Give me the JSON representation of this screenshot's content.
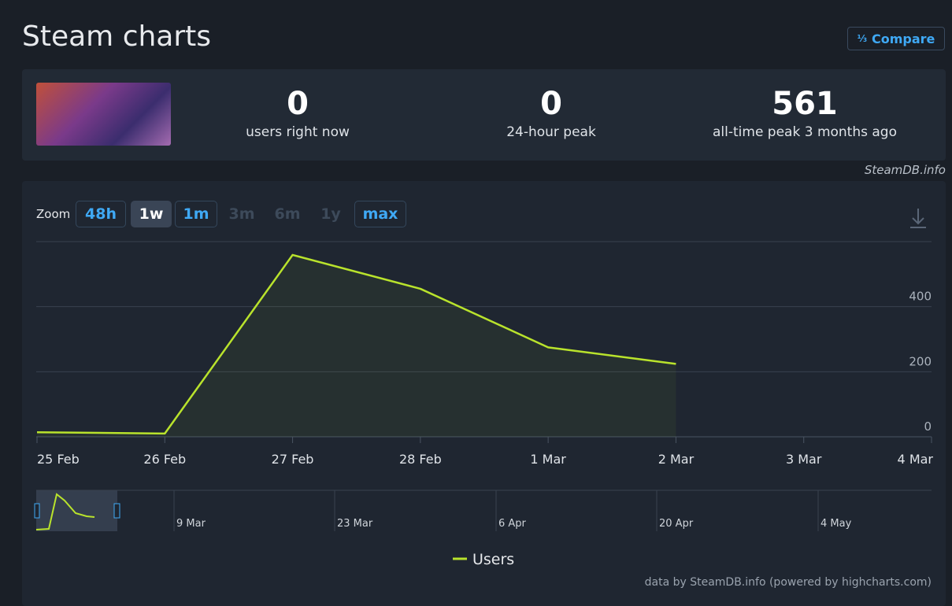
{
  "header": {
    "title": "Steam charts",
    "compare": "Compare"
  },
  "stats": [
    {
      "value": 0,
      "label": "users right now"
    },
    {
      "value": 0,
      "label": "24-hour peak"
    },
    {
      "value": 561,
      "label": "all-time peak 3 months ago"
    }
  ],
  "source": "SteamDB.info",
  "zoom": {
    "label": "Zoom",
    "buttons": [
      "48h",
      "1w",
      "1m",
      "3m",
      "6m",
      "1y",
      "max"
    ]
  },
  "chart_data": {
    "type": "line",
    "categories": [
      "25 Feb",
      "26 Feb",
      "27 Feb",
      "28 Feb",
      "1 Mar",
      "2 Mar",
      "3 Mar",
      "4 Mar"
    ],
    "series": [
      {
        "name": "Users",
        "color": "#b9e32c",
        "values": [
          14,
          10,
          559,
          455,
          275,
          224,
          null,
          null
        ]
      }
    ],
    "ylim": [
      0,
      600
    ],
    "yticks": [
      0,
      200,
      400
    ],
    "grid": true
  },
  "navigator": {
    "labels": [
      "9 Mar",
      "23 Mar",
      "6 Apr",
      "20 Apr",
      "4 May"
    ]
  },
  "credits": "data by SteamDB.info (powered by highcharts.com)"
}
